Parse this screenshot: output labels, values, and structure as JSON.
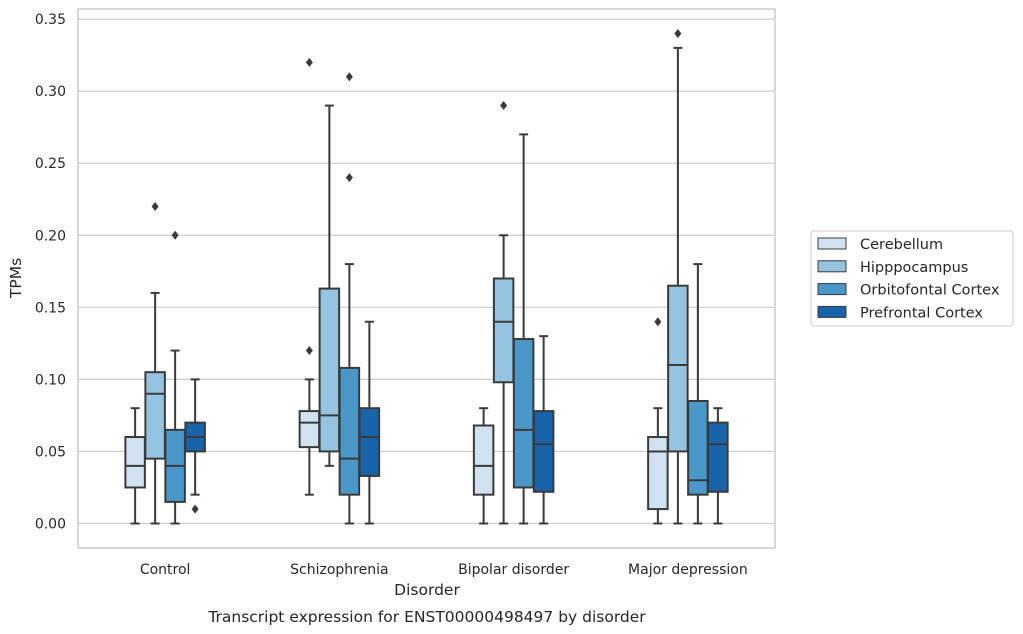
{
  "chart_data": {
    "type": "box",
    "title": "",
    "caption": "Transcript expression for ENST00000498497 by disorder",
    "xlabel": "Disorder",
    "ylabel": "TPMs",
    "ylim": [
      -0.017,
      0.357
    ],
    "yticks": [
      "0.00",
      "0.05",
      "0.10",
      "0.15",
      "0.20",
      "0.25",
      "0.30",
      "0.35"
    ],
    "ytick_values": [
      0,
      0.05,
      0.1,
      0.15,
      0.2,
      0.25,
      0.3,
      0.35
    ],
    "grid": "horizontal",
    "legend_position": "right",
    "categories": [
      "Control",
      "Schizophrenia",
      "Bipolar disorder",
      "Major depression"
    ],
    "series": [
      {
        "name": "Cerebellum",
        "color": "#d0e1f2",
        "boxes": [
          {
            "whislo": 0.0,
            "q1": 0.025,
            "med": 0.04,
            "q3": 0.06,
            "whishi": 0.08,
            "fliers": []
          },
          {
            "whislo": 0.02,
            "q1": 0.053,
            "med": 0.07,
            "q3": 0.078,
            "whishi": 0.1,
            "fliers": [
              0.12,
              0.32
            ]
          },
          {
            "whislo": 0.0,
            "q1": 0.02,
            "med": 0.04,
            "q3": 0.068,
            "whishi": 0.08,
            "fliers": []
          },
          {
            "whislo": 0.0,
            "q1": 0.01,
            "med": 0.05,
            "q3": 0.06,
            "whishi": 0.08,
            "fliers": [
              0.14
            ]
          }
        ]
      },
      {
        "name": "Hipppocampus",
        "color": "#94c4df",
        "boxes": [
          {
            "whislo": 0.0,
            "q1": 0.045,
            "med": 0.09,
            "q3": 0.105,
            "whishi": 0.16,
            "fliers": [
              0.22
            ]
          },
          {
            "whislo": 0.04,
            "q1": 0.05,
            "med": 0.075,
            "q3": 0.163,
            "whishi": 0.29,
            "fliers": []
          },
          {
            "whislo": 0.0,
            "q1": 0.098,
            "med": 0.14,
            "q3": 0.17,
            "whishi": 0.2,
            "fliers": [
              0.29
            ]
          },
          {
            "whislo": 0.0,
            "q1": 0.05,
            "med": 0.11,
            "q3": 0.165,
            "whishi": 0.33,
            "fliers": [
              0.34
            ]
          }
        ]
      },
      {
        "name": "Orbitofontal Cortex",
        "color": "#4a98c9",
        "boxes": [
          {
            "whislo": 0.0,
            "q1": 0.015,
            "med": 0.04,
            "q3": 0.065,
            "whishi": 0.12,
            "fliers": [
              0.2
            ]
          },
          {
            "whislo": 0.0,
            "q1": 0.02,
            "med": 0.045,
            "q3": 0.108,
            "whishi": 0.18,
            "fliers": [
              0.24,
              0.31
            ]
          },
          {
            "whislo": 0.0,
            "q1": 0.025,
            "med": 0.065,
            "q3": 0.128,
            "whishi": 0.27,
            "fliers": []
          },
          {
            "whislo": 0.0,
            "q1": 0.02,
            "med": 0.03,
            "q3": 0.085,
            "whishi": 0.18,
            "fliers": []
          }
        ]
      },
      {
        "name": "Prefrontal Cortex",
        "color": "#1764ab",
        "boxes": [
          {
            "whislo": 0.02,
            "q1": 0.05,
            "med": 0.06,
            "q3": 0.07,
            "whishi": 0.1,
            "fliers": [
              0.01
            ]
          },
          {
            "whislo": 0.0,
            "q1": 0.033,
            "med": 0.06,
            "q3": 0.08,
            "whishi": 0.14,
            "fliers": []
          },
          {
            "whislo": 0.0,
            "q1": 0.022,
            "med": 0.055,
            "q3": 0.078,
            "whishi": 0.13,
            "fliers": []
          },
          {
            "whislo": 0.0,
            "q1": 0.022,
            "med": 0.055,
            "q3": 0.07,
            "whishi": 0.08,
            "fliers": []
          }
        ]
      }
    ]
  },
  "colors": {
    "edge": "#3a3a3a",
    "grid": "#cccccc",
    "spine": "#cccccc"
  }
}
